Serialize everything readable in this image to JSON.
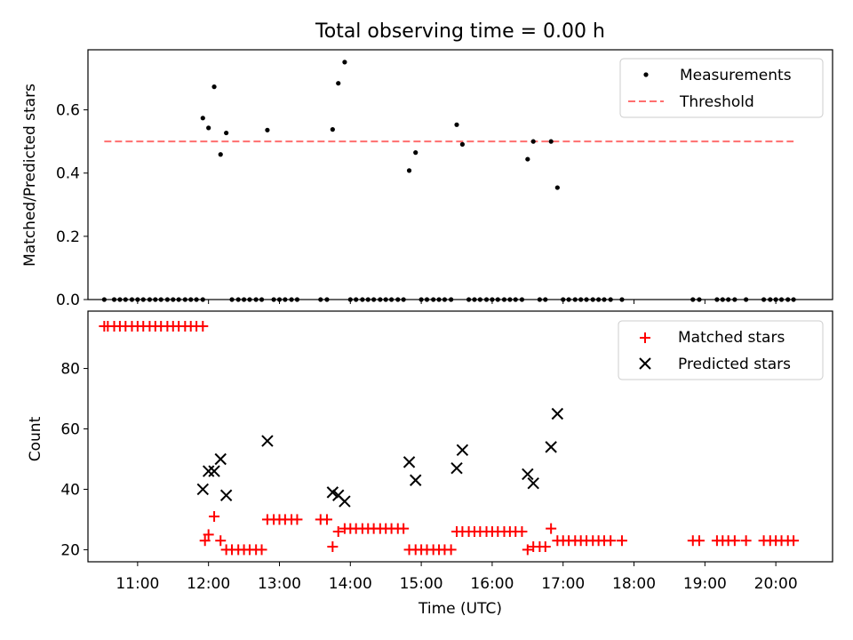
{
  "figure": {
    "title": "Total observing time = 0.00 h"
  },
  "colors": {
    "threshold": "#ff6e6e",
    "matched": "#ff0000",
    "predicted": "#000000",
    "measurement": "#000000"
  },
  "chart_data": [
    {
      "type": "scatter",
      "ylabel": "Matched/Predicted stars",
      "xlim": [
        10.3,
        20.8
      ],
      "ylim": [
        0,
        0.79
      ],
      "yticks": [
        0.0,
        0.2,
        0.4,
        0.6
      ],
      "ytick_labels": [
        "0.0",
        "0.2",
        "0.4",
        "0.6"
      ],
      "legend_position": "top-right",
      "threshold": {
        "name": "Threshold",
        "value": 0.5,
        "x_range": [
          10.53,
          20.25
        ]
      },
      "series": [
        {
          "name": "Measurements",
          "marker": "dot",
          "points": [
            [
              10.53,
              0
            ],
            [
              10.67,
              0
            ],
            [
              10.75,
              0
            ],
            [
              10.83,
              0
            ],
            [
              10.92,
              0
            ],
            [
              11.0,
              0
            ],
            [
              11.08,
              0
            ],
            [
              11.17,
              0
            ],
            [
              11.25,
              0
            ],
            [
              11.33,
              0
            ],
            [
              11.42,
              0
            ],
            [
              11.5,
              0
            ],
            [
              11.58,
              0
            ],
            [
              11.67,
              0
            ],
            [
              11.75,
              0
            ],
            [
              11.83,
              0
            ],
            [
              11.92,
              0
            ],
            [
              11.92,
              0.574
            ],
            [
              12.0,
              0.543
            ],
            [
              12.08,
              0.673
            ],
            [
              12.17,
              0.459
            ],
            [
              12.25,
              0.527
            ],
            [
              12.33,
              0
            ],
            [
              12.42,
              0
            ],
            [
              12.5,
              0
            ],
            [
              12.58,
              0
            ],
            [
              12.67,
              0
            ],
            [
              12.75,
              0
            ],
            [
              12.83,
              0.536
            ],
            [
              12.92,
              0
            ],
            [
              13.0,
              0
            ],
            [
              13.08,
              0
            ],
            [
              13.17,
              0
            ],
            [
              13.25,
              0
            ],
            [
              13.58,
              0
            ],
            [
              13.67,
              0
            ],
            [
              13.75,
              0.538
            ],
            [
              13.83,
              0.684
            ],
            [
              13.92,
              0.751
            ],
            [
              14.0,
              0
            ],
            [
              14.08,
              0
            ],
            [
              14.17,
              0
            ],
            [
              14.25,
              0
            ],
            [
              14.33,
              0
            ],
            [
              14.42,
              0
            ],
            [
              14.5,
              0
            ],
            [
              14.58,
              0
            ],
            [
              14.67,
              0
            ],
            [
              14.75,
              0
            ],
            [
              14.83,
              0.408
            ],
            [
              14.92,
              0.465
            ],
            [
              15.0,
              0
            ],
            [
              15.08,
              0
            ],
            [
              15.17,
              0
            ],
            [
              15.25,
              0
            ],
            [
              15.33,
              0
            ],
            [
              15.42,
              0
            ],
            [
              15.5,
              0.553
            ],
            [
              15.58,
              0.491
            ],
            [
              15.67,
              0
            ],
            [
              15.75,
              0
            ],
            [
              15.83,
              0
            ],
            [
              15.92,
              0
            ],
            [
              16.0,
              0
            ],
            [
              16.08,
              0
            ],
            [
              16.17,
              0
            ],
            [
              16.25,
              0
            ],
            [
              16.33,
              0
            ],
            [
              16.42,
              0
            ],
            [
              16.67,
              0
            ],
            [
              16.75,
              0
            ],
            [
              16.5,
              0.444
            ],
            [
              16.58,
              0.5
            ],
            [
              16.83,
              0.5
            ],
            [
              16.92,
              0.354
            ],
            [
              17.0,
              0
            ],
            [
              17.08,
              0
            ],
            [
              17.17,
              0
            ],
            [
              17.25,
              0
            ],
            [
              17.33,
              0
            ],
            [
              17.42,
              0
            ],
            [
              17.5,
              0
            ],
            [
              17.58,
              0
            ],
            [
              17.67,
              0
            ],
            [
              17.83,
              0
            ],
            [
              18.83,
              0
            ],
            [
              18.92,
              0
            ],
            [
              19.17,
              0
            ],
            [
              19.25,
              0
            ],
            [
              19.33,
              0
            ],
            [
              19.42,
              0
            ],
            [
              19.58,
              0
            ],
            [
              19.83,
              0
            ],
            [
              19.92,
              0
            ],
            [
              20.0,
              0
            ],
            [
              20.08,
              0
            ],
            [
              20.17,
              0
            ],
            [
              20.25,
              0
            ]
          ]
        }
      ]
    },
    {
      "type": "scatter",
      "xlabel": "Time (UTC)",
      "ylabel": "Count",
      "xlim": [
        10.3,
        20.8
      ],
      "ylim": [
        16,
        99
      ],
      "yticks": [
        20,
        40,
        60,
        80
      ],
      "ytick_labels": [
        "20",
        "40",
        "60",
        "80"
      ],
      "xticks": [
        11,
        12,
        13,
        14,
        15,
        16,
        17,
        18,
        19,
        20
      ],
      "xtick_labels": [
        "11:00",
        "12:00",
        "13:00",
        "14:00",
        "15:00",
        "16:00",
        "17:00",
        "18:00",
        "19:00",
        "20:00"
      ],
      "legend_position": "top-right",
      "series": [
        {
          "name": "Matched stars",
          "marker": "plus",
          "points": [
            [
              10.53,
              94
            ],
            [
              10.58,
              94
            ],
            [
              10.67,
              94
            ],
            [
              10.75,
              94
            ],
            [
              10.83,
              94
            ],
            [
              10.92,
              94
            ],
            [
              11.0,
              94
            ],
            [
              11.08,
              94
            ],
            [
              11.17,
              94
            ],
            [
              11.25,
              94
            ],
            [
              11.33,
              94
            ],
            [
              11.42,
              94
            ],
            [
              11.5,
              94
            ],
            [
              11.58,
              94
            ],
            [
              11.67,
              94
            ],
            [
              11.75,
              94
            ],
            [
              11.83,
              94
            ],
            [
              11.92,
              94
            ],
            [
              11.95,
              23
            ],
            [
              12.0,
              25
            ],
            [
              12.08,
              31
            ],
            [
              12.17,
              23
            ],
            [
              12.25,
              20
            ],
            [
              12.33,
              20
            ],
            [
              12.42,
              20
            ],
            [
              12.5,
              20
            ],
            [
              12.58,
              20
            ],
            [
              12.67,
              20
            ],
            [
              12.75,
              20
            ],
            [
              12.83,
              30
            ],
            [
              12.92,
              30
            ],
            [
              13.0,
              30
            ],
            [
              13.08,
              30
            ],
            [
              13.17,
              30
            ],
            [
              13.25,
              30
            ],
            [
              13.58,
              30
            ],
            [
              13.67,
              30
            ],
            [
              13.75,
              21
            ],
            [
              13.83,
              26
            ],
            [
              13.92,
              27
            ],
            [
              14.0,
              27
            ],
            [
              14.08,
              27
            ],
            [
              14.17,
              27
            ],
            [
              14.25,
              27
            ],
            [
              14.33,
              27
            ],
            [
              14.42,
              27
            ],
            [
              14.5,
              27
            ],
            [
              14.58,
              27
            ],
            [
              14.67,
              27
            ],
            [
              14.75,
              27
            ],
            [
              14.83,
              20
            ],
            [
              14.92,
              20
            ],
            [
              15.0,
              20
            ],
            [
              15.08,
              20
            ],
            [
              15.17,
              20
            ],
            [
              15.25,
              20
            ],
            [
              15.33,
              20
            ],
            [
              15.42,
              20
            ],
            [
              15.5,
              26
            ],
            [
              15.58,
              26
            ],
            [
              15.67,
              26
            ],
            [
              15.75,
              26
            ],
            [
              15.83,
              26
            ],
            [
              15.92,
              26
            ],
            [
              16.0,
              26
            ],
            [
              16.08,
              26
            ],
            [
              16.17,
              26
            ],
            [
              16.25,
              26
            ],
            [
              16.33,
              26
            ],
            [
              16.42,
              26
            ],
            [
              16.5,
              20
            ],
            [
              16.58,
              21
            ],
            [
              16.67,
              21
            ],
            [
              16.75,
              21
            ],
            [
              16.83,
              27
            ],
            [
              16.92,
              23
            ],
            [
              17.0,
              23
            ],
            [
              17.08,
              23
            ],
            [
              17.17,
              23
            ],
            [
              17.25,
              23
            ],
            [
              17.33,
              23
            ],
            [
              17.42,
              23
            ],
            [
              17.5,
              23
            ],
            [
              17.58,
              23
            ],
            [
              17.67,
              23
            ],
            [
              17.83,
              23
            ],
            [
              18.83,
              23
            ],
            [
              18.92,
              23
            ],
            [
              19.17,
              23
            ],
            [
              19.25,
              23
            ],
            [
              19.33,
              23
            ],
            [
              19.42,
              23
            ],
            [
              19.58,
              23
            ],
            [
              19.83,
              23
            ],
            [
              19.92,
              23
            ],
            [
              20.0,
              23
            ],
            [
              20.08,
              23
            ],
            [
              20.17,
              23
            ],
            [
              20.25,
              23
            ]
          ]
        },
        {
          "name": "Predicted stars",
          "marker": "x",
          "points": [
            [
              11.92,
              40
            ],
            [
              12.0,
              46
            ],
            [
              12.08,
              46
            ],
            [
              12.17,
              50
            ],
            [
              12.25,
              38
            ],
            [
              12.83,
              56
            ],
            [
              13.75,
              39
            ],
            [
              13.83,
              38
            ],
            [
              13.92,
              36
            ],
            [
              14.83,
              49
            ],
            [
              14.92,
              43
            ],
            [
              15.5,
              47
            ],
            [
              15.58,
              53
            ],
            [
              16.5,
              45
            ],
            [
              16.58,
              42
            ],
            [
              16.83,
              54
            ],
            [
              16.92,
              65
            ]
          ]
        }
      ]
    }
  ]
}
